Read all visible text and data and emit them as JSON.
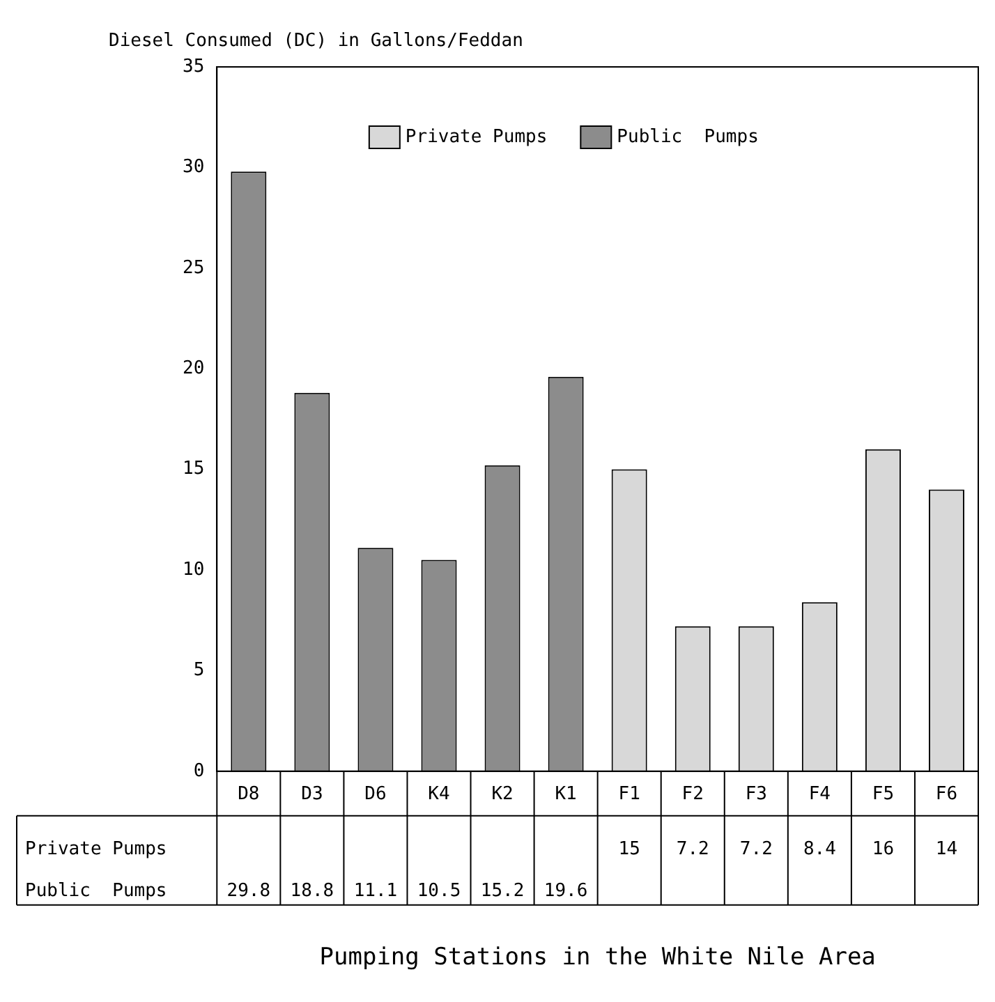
{
  "chart_data": {
    "type": "bar",
    "ylabel": "Diesel Consumed (DC) in Gallons/Feddan",
    "annotations": [
      "Pumping Stations in the White Nile Area"
    ],
    "categories": [
      "D8",
      "D3",
      "D6",
      "K4",
      "K2",
      "K1",
      "F1",
      "F2",
      "F3",
      "F4",
      "F5",
      "F6"
    ],
    "series": [
      {
        "name": "Private Pumps",
        "color": "#d8d8d8",
        "values": [
          null,
          null,
          null,
          null,
          null,
          null,
          15,
          7.2,
          7.2,
          8.4,
          16,
          14
        ]
      },
      {
        "name": "Public  Pumps",
        "color": "#8c8c8c",
        "values": [
          29.8,
          18.8,
          11.1,
          10.5,
          15.2,
          19.6,
          null,
          null,
          null,
          null,
          null,
          null
        ]
      }
    ],
    "ylim": [
      0,
      35
    ],
    "yticks": [
      0,
      5,
      10,
      15,
      20,
      25,
      30,
      35
    ],
    "grid": false,
    "legend": "top right",
    "data_labels": true
  }
}
